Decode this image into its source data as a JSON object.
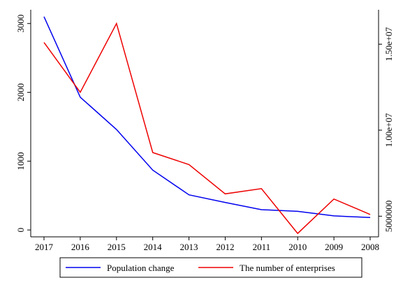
{
  "chart_data": {
    "type": "line",
    "categories": [
      "2017",
      "2016",
      "2015",
      "2014",
      "2013",
      "2012",
      "2011",
      "2010",
      "2009",
      "2008"
    ],
    "series": [
      {
        "name": "Population change",
        "axis": "left",
        "color": "#0000ee",
        "values": [
          3100,
          1930,
          1460,
          870,
          510,
          400,
          295,
          270,
          205,
          180
        ]
      },
      {
        "name": "The number of enterprises",
        "axis": "right",
        "color": "#ee0000",
        "values": [
          15100000,
          12200000,
          16200000,
          8700000,
          8000000,
          6300000,
          6600000,
          4000000,
          6000000,
          5100000
        ]
      }
    ],
    "y_left": {
      "range": [
        -100,
        3200
      ],
      "ticks": [
        0,
        1000,
        2000,
        3000
      ],
      "tick_labels": [
        "0",
        "1000",
        "2000",
        "3000"
      ]
    },
    "y_right": {
      "range": [
        3800000,
        17000000
      ],
      "ticks": [
        5000000,
        10000000,
        15000000
      ],
      "tick_labels": [
        "5000000",
        "1.00e+07",
        "1.50e+07"
      ]
    },
    "grid": false,
    "legend_position": "bottom"
  }
}
